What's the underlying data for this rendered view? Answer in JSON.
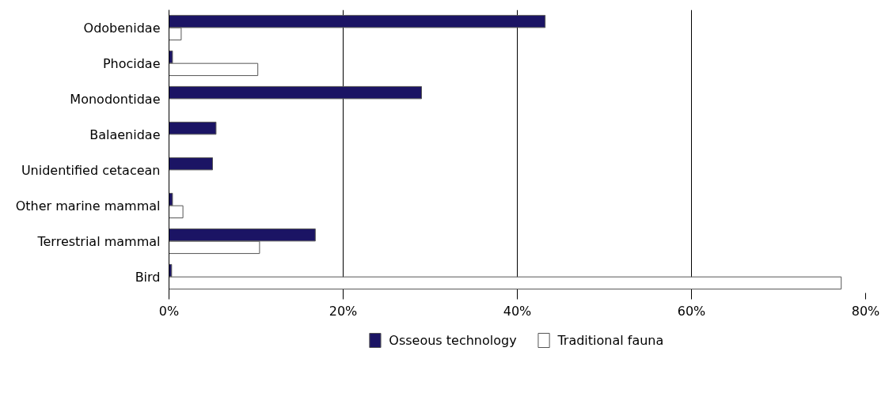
{
  "chart_data": {
    "type": "bar",
    "orientation": "horizontal",
    "categories": [
      "Odobenidae",
      "Phocidae",
      "Monodontidae",
      "Balaenidae",
      "Unidentified cetacean",
      "Other marine mammal",
      "Terrestrial mammal",
      "Bird"
    ],
    "series": [
      {
        "name": "Osseous technology",
        "color": "#1b1464",
        "values": [
          43.2,
          0.4,
          29.0,
          5.4,
          5.0,
          0.4,
          16.8,
          0.3
        ]
      },
      {
        "name": "Traditional fauna",
        "color": "#ffffff",
        "values": [
          1.4,
          10.2,
          null,
          null,
          null,
          1.6,
          10.4,
          77.2
        ]
      }
    ],
    "xlim": [
      0,
      80
    ],
    "xticks": [
      {
        "value": 0,
        "label": "0%"
      },
      {
        "value": 20,
        "label": "20%"
      },
      {
        "value": 40,
        "label": "40%"
      },
      {
        "value": 60,
        "label": "60%"
      },
      {
        "value": 80,
        "label": "80%"
      }
    ],
    "grid": "x",
    "legend": "bottom"
  }
}
